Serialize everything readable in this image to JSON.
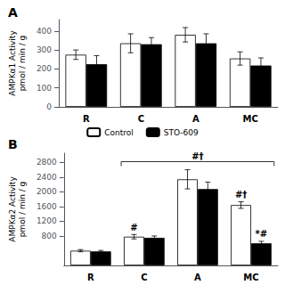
{
  "chart_data": [
    {
      "type": "bar",
      "title": "A",
      "categories": [
        "R",
        "C",
        "A",
        "MC"
      ],
      "ylabel": "AMPKα1 Activity\npmol / min / g",
      "ylim": [
        0,
        460
      ],
      "yticks": [
        0,
        100,
        200,
        300,
        400
      ],
      "grid": false,
      "legend": "bottom",
      "series": [
        {
          "name": "Control",
          "color": "white",
          "values": [
            275,
            335,
            380,
            255
          ],
          "errors": [
            25,
            50,
            38,
            35
          ]
        },
        {
          "name": "STO-609",
          "color": "black",
          "values": [
            225,
            330,
            335,
            218
          ],
          "errors": [
            45,
            35,
            50,
            40
          ]
        }
      ]
    },
    {
      "type": "bar",
      "title": "B",
      "categories": [
        "R",
        "C",
        "A",
        "MC"
      ],
      "ylabel": "AMPKα2 Activity\npmol / min / g",
      "ylim": [
        0,
        3050
      ],
      "yticks": [
        800,
        1200,
        1600,
        2000,
        2400,
        2800
      ],
      "grid": false,
      "series": [
        {
          "name": "Control",
          "color": "white",
          "values": [
            400,
            780,
            2340,
            1640
          ],
          "errors": [
            30,
            60,
            260,
            90
          ]
        },
        {
          "name": "STO-609",
          "color": "black",
          "values": [
            380,
            750,
            2075,
            600
          ],
          "errors": [
            28,
            50,
            190,
            55
          ]
        }
      ],
      "annotations": [
        {
          "text": "#",
          "category": "C",
          "series": "Control"
        },
        {
          "text": "#†",
          "category": "MC",
          "series": "Control"
        },
        {
          "text": "*#",
          "category": "MC",
          "series": "STO-609"
        }
      ],
      "brackets": [
        {
          "text": "#†",
          "y": 2820,
          "from": {
            "category": "C",
            "series": "Control"
          },
          "to": {
            "category": "MC",
            "series": "STO-609"
          },
          "label_category": "A"
        }
      ]
    }
  ]
}
